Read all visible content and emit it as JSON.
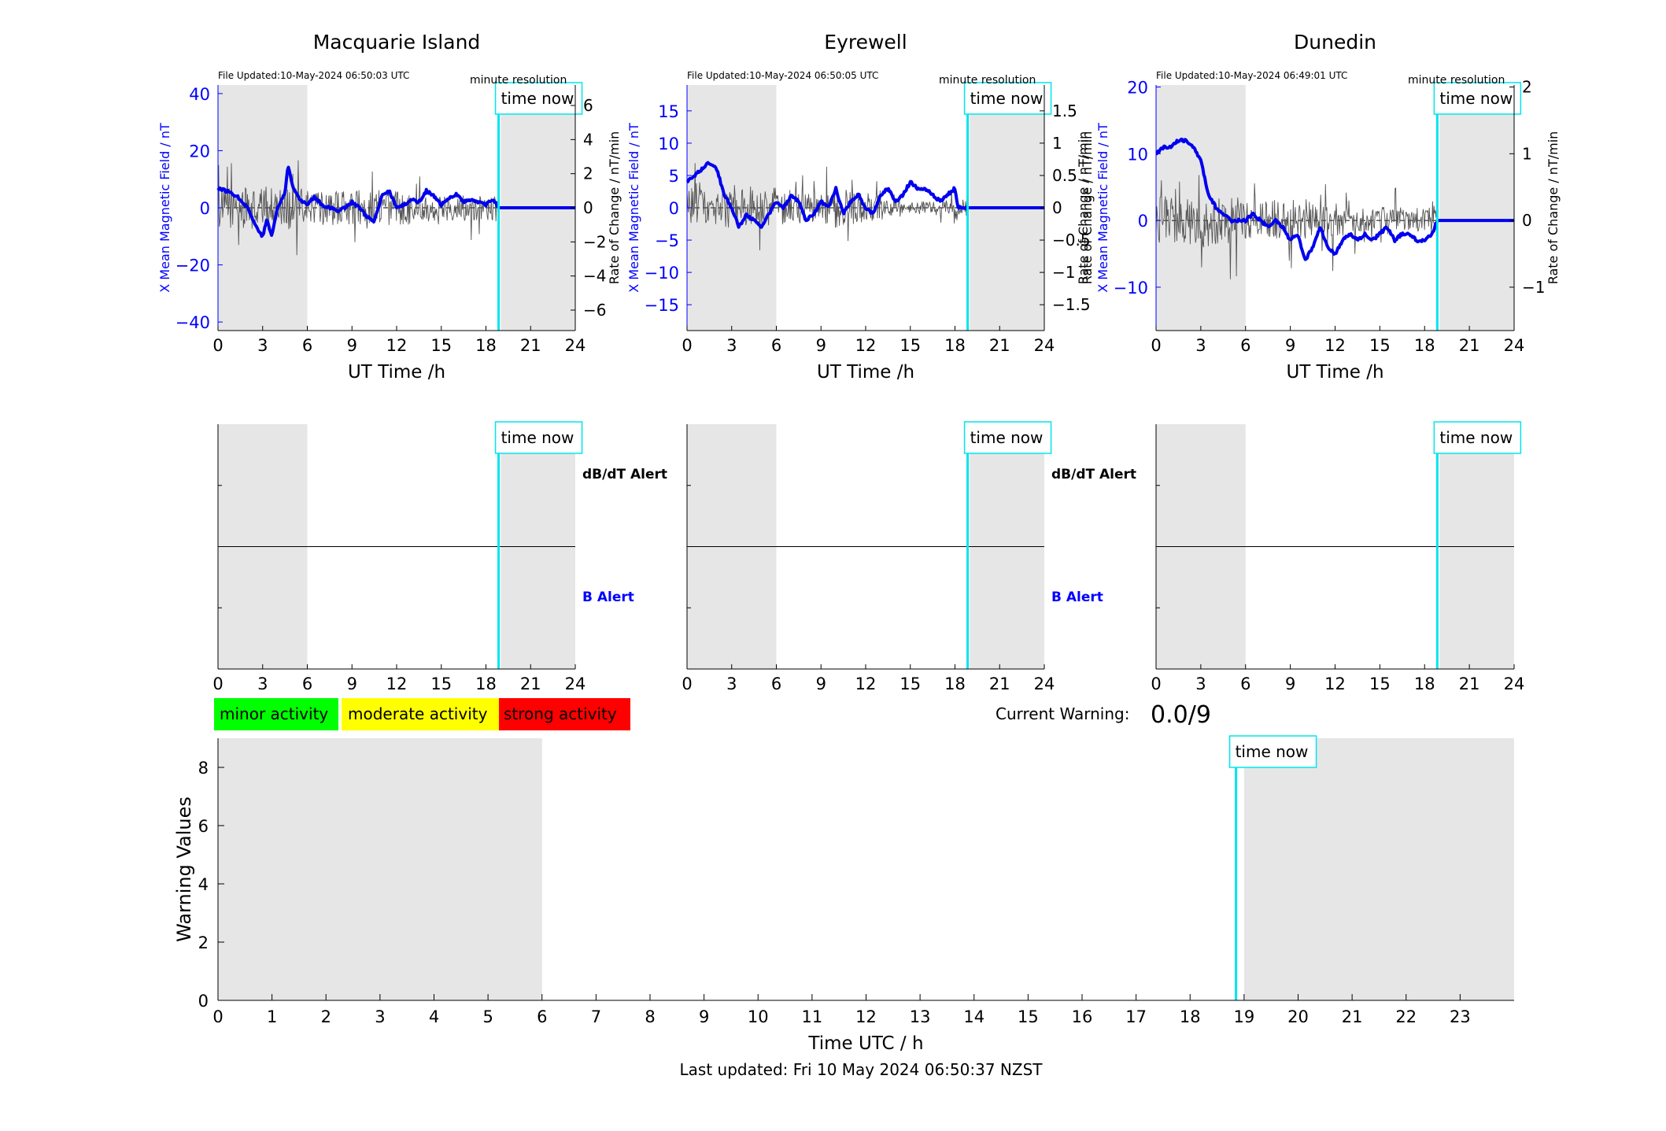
{
  "footer": "Last updated: Fri 10 May 2024 06:50:37 NZST",
  "current_warning": {
    "label": "Current Warning:",
    "value": "0.0/9"
  },
  "legend_activity": [
    {
      "label": "minor activity",
      "color": "#00ff00"
    },
    {
      "label": "moderate activity",
      "color": "#ffff00"
    },
    {
      "label": "strong activity",
      "color": "#ff0000"
    }
  ],
  "colors": {
    "field": "#0000ee",
    "rate": "#555555",
    "now_line": "#00e5ee",
    "night_shade": "#e6e6e6",
    "axis_blue": "#0000ff"
  },
  "time_now_label": "time now",
  "resolution_label": "minute resolution",
  "chart_data": [
    {
      "id": "macquarie",
      "type": "line",
      "title": "Macquarie Island",
      "file_updated": "File Updated:10-May-2024 06:50:03 UTC",
      "xlabel": "UT Time /h",
      "ylabel": "X Mean Magnetic Field / nT",
      "y2label": "Rate of Change / nT/min",
      "xlim": [
        0,
        24
      ],
      "ylim": [
        -43,
        43
      ],
      "y2lim": [
        -7.2,
        7.2
      ],
      "xticks": [
        0,
        3,
        6,
        9,
        12,
        15,
        18,
        21,
        24
      ],
      "yticks": [
        -40,
        -20,
        0,
        20,
        40
      ],
      "y2ticks": [
        -6,
        -4,
        -2,
        0,
        2,
        4,
        6
      ],
      "y2tick_labels": [
        "-6",
        "-4",
        "-2",
        "0",
        "2",
        "4",
        "6"
      ],
      "night_shade": [
        [
          0,
          6
        ],
        [
          19,
          24
        ]
      ],
      "time_now": 18.85,
      "rate_amplitude": 1.2,
      "rate_decay": 0.65,
      "series": [
        {
          "x": [
            0,
            0.5,
            1,
            1.5,
            2,
            2.5,
            3,
            3.3,
            3.6,
            4,
            4.5,
            4.7,
            5,
            5.5,
            6,
            6.5,
            7,
            7.5,
            8,
            8.5,
            9,
            9.5,
            10,
            10.5,
            11,
            11.5,
            12,
            12.5,
            13,
            13.5,
            14,
            14.5,
            15,
            15.5,
            16,
            16.5,
            17,
            17.5,
            18,
            18.5,
            18.85,
            24
          ],
          "y": [
            7,
            6,
            5,
            3,
            0,
            -6,
            -10,
            -4,
            -10,
            0,
            5,
            15,
            8,
            3,
            1,
            4,
            1,
            0,
            -1,
            0,
            2,
            0,
            -3,
            -5,
            4,
            6,
            0,
            1,
            3,
            2,
            6,
            4,
            1,
            3,
            5,
            2,
            3,
            2,
            1,
            3,
            0,
            0
          ]
        }
      ]
    },
    {
      "id": "eyrewell",
      "type": "line",
      "title": "Eyrewell",
      "file_updated": "File Updated:10-May-2024 06:50:05 UTC",
      "xlabel": "UT Time /h",
      "ylabel": "X Mean Magnetic Field / nT",
      "y2label": "Rate of Change / nT/min",
      "xlim": [
        0,
        24
      ],
      "ylim": [
        -19,
        19
      ],
      "y2lim": [
        -1.9,
        1.9
      ],
      "xticks": [
        0,
        3,
        6,
        9,
        12,
        15,
        18,
        21,
        24
      ],
      "yticks": [
        -15,
        -10,
        -5,
        0,
        5,
        10,
        15
      ],
      "y2ticks": [
        -1.5,
        -1,
        -0.5,
        0,
        0.5,
        1,
        1.5
      ],
      "y2tick_labels": [
        "-1.5",
        "-1",
        "-0.5",
        "0",
        "0.5",
        "1",
        "1.5"
      ],
      "night_shade": [
        [
          0,
          6
        ],
        [
          19,
          24
        ]
      ],
      "time_now": 18.85,
      "rate_amplitude": 0.3,
      "rate_decay": 0.35,
      "series": [
        {
          "x": [
            0,
            0.5,
            1,
            1.5,
            2,
            2.5,
            3,
            3.5,
            4,
            4.5,
            5,
            5.5,
            6,
            6.5,
            7,
            7.5,
            8,
            8.5,
            9,
            9.5,
            10,
            10.5,
            11,
            11.5,
            12,
            12.5,
            13,
            13.5,
            14,
            14.5,
            15,
            15.5,
            16,
            16.5,
            17,
            17.5,
            18,
            18.2,
            24
          ],
          "y": [
            4,
            5,
            6,
            7,
            6,
            2,
            0,
            -3,
            -1,
            -2,
            -3,
            -1,
            1,
            0,
            2,
            1,
            -2,
            -1,
            1,
            0,
            3,
            -1,
            1,
            2,
            0,
            -1,
            2,
            3,
            1,
            2,
            4,
            3,
            3,
            2,
            1,
            2,
            3,
            0,
            0
          ]
        }
      ]
    },
    {
      "id": "dunedin",
      "type": "line",
      "title": "Dunedin",
      "file_updated": "File Updated:10-May-2024 06:49:01 UTC",
      "xlabel": "UT Time /h",
      "ylabel": "X Mean Magnetic Field / nT",
      "y2label": "Rate of Change / nT/min",
      "xlim": [
        0,
        24
      ],
      "ylim": [
        -16.5,
        20.3
      ],
      "y2lim": [
        -1.65,
        2.03
      ],
      "xticks": [
        0,
        3,
        6,
        9,
        12,
        15,
        18,
        21,
        24
      ],
      "yticks": [
        -10,
        0,
        10,
        20
      ],
      "y2ticks": [
        -1,
        0,
        1,
        2
      ],
      "y2tick_labels": [
        "-1",
        "0",
        "1",
        "2"
      ],
      "night_shade": [
        [
          0,
          6
        ],
        [
          19,
          24
        ]
      ],
      "time_now": 18.85,
      "rate_amplitude": 0.35,
      "rate_decay": 0.55,
      "series": [
        {
          "x": [
            0,
            0.5,
            1,
            1.5,
            2,
            2.5,
            3,
            3.5,
            4,
            4.5,
            5,
            5.5,
            6,
            6.5,
            7,
            7.5,
            8,
            8.5,
            9,
            9.5,
            10,
            10.5,
            11,
            11.5,
            12,
            12.5,
            13,
            13.5,
            14,
            14.5,
            15,
            15.5,
            16,
            16.5,
            17,
            17.5,
            18,
            18.5,
            18.85,
            24
          ],
          "y": [
            10,
            11,
            11,
            12,
            12,
            11,
            9,
            4,
            2,
            1,
            0,
            0,
            0,
            1,
            0,
            -1,
            0,
            -1,
            -3,
            -2,
            -6,
            -4,
            -1,
            -4,
            -5,
            -3,
            -2,
            -3,
            -2,
            -3,
            -2,
            -1,
            -3,
            -2,
            -2,
            -3,
            -3,
            -2,
            0,
            0
          ]
        }
      ]
    },
    {
      "id": "alerts-macquarie",
      "type": "line",
      "xlim": [
        0,
        24
      ],
      "xticks": [
        0,
        3,
        6,
        9,
        12,
        15,
        18,
        21,
        24
      ],
      "night_shade": [
        [
          0,
          6
        ],
        [
          19,
          24
        ]
      ],
      "time_now": 18.85,
      "labels": {
        "upper": "dB/dT Alert",
        "lower": "B Alert"
      }
    },
    {
      "id": "alerts-eyrewell",
      "type": "line",
      "xlim": [
        0,
        24
      ],
      "xticks": [
        0,
        3,
        6,
        9,
        12,
        15,
        18,
        21,
        24
      ],
      "night_shade": [
        [
          0,
          6
        ],
        [
          19,
          24
        ]
      ],
      "time_now": 18.85,
      "labels": {
        "upper": "dB/dT Alert",
        "lower": "B Alert"
      }
    },
    {
      "id": "alerts-dunedin",
      "type": "line",
      "xlim": [
        0,
        24
      ],
      "xticks": [
        0,
        3,
        6,
        9,
        12,
        15,
        18,
        21,
        24
      ],
      "night_shade": [
        [
          0,
          6
        ],
        [
          19,
          24
        ]
      ],
      "time_now": 18.85
    },
    {
      "id": "warning",
      "type": "bar",
      "xlabel": "Time UTC / h",
      "ylabel": "Warning Values",
      "xlim": [
        0,
        24
      ],
      "ylim": [
        0,
        9
      ],
      "xticks": [
        0,
        1,
        2,
        3,
        4,
        5,
        6,
        7,
        8,
        9,
        10,
        11,
        12,
        13,
        14,
        15,
        16,
        17,
        18,
        19,
        20,
        21,
        22,
        23
      ],
      "yticks": [
        0,
        2,
        4,
        6,
        8
      ],
      "night_shade": [
        [
          0,
          6
        ],
        [
          19,
          24
        ]
      ],
      "time_now": 18.85,
      "values": []
    }
  ]
}
